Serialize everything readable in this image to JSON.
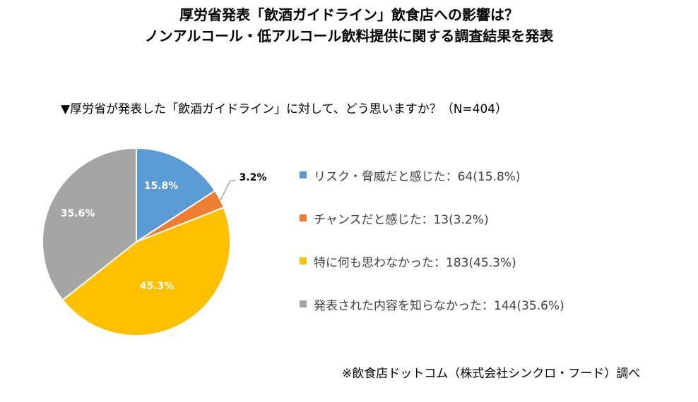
{
  "header": {
    "title_line1": "厚労省発表「飲酒ガイドライン」飲食店への影響は？",
    "title_line2": "ノンアルコール・低アルコール飲料提供に関する調査結果を発表"
  },
  "question": "▼厚労省が発表した「飲酒ガイドライン」に対して、どう思いますか？（N=404）",
  "chart_data": {
    "type": "pie",
    "n": 404,
    "slices": [
      {
        "label": "リスク・脅威だと感じた",
        "count": 64,
        "percent": 15.8,
        "value_label": "15.8%",
        "legend_text": "リスク・脅威だと感じた：64(15.8%)",
        "color": "#5b9bd5"
      },
      {
        "label": "チャンスだと感じた",
        "count": 13,
        "percent": 3.2,
        "value_label": "3.2%",
        "legend_text": "チャンスだと感じた：13(3.2%)",
        "color": "#ed7d31"
      },
      {
        "label": "特に何も思わなかった",
        "count": 183,
        "percent": 45.3,
        "value_label": "45.3%",
        "legend_text": "特に何も思わなかった：183(45.3%)",
        "color": "#ffc000"
      },
      {
        "label": "発表された内容を知らなかった",
        "count": 144,
        "percent": 35.6,
        "value_label": "35.6%",
        "legend_text": "発表された内容を知らなかった：144(35.6%)",
        "color": "#a5a5a5"
      }
    ]
  },
  "source": "※飲食店ドットコム（株式会社シンクロ・フード）調べ"
}
